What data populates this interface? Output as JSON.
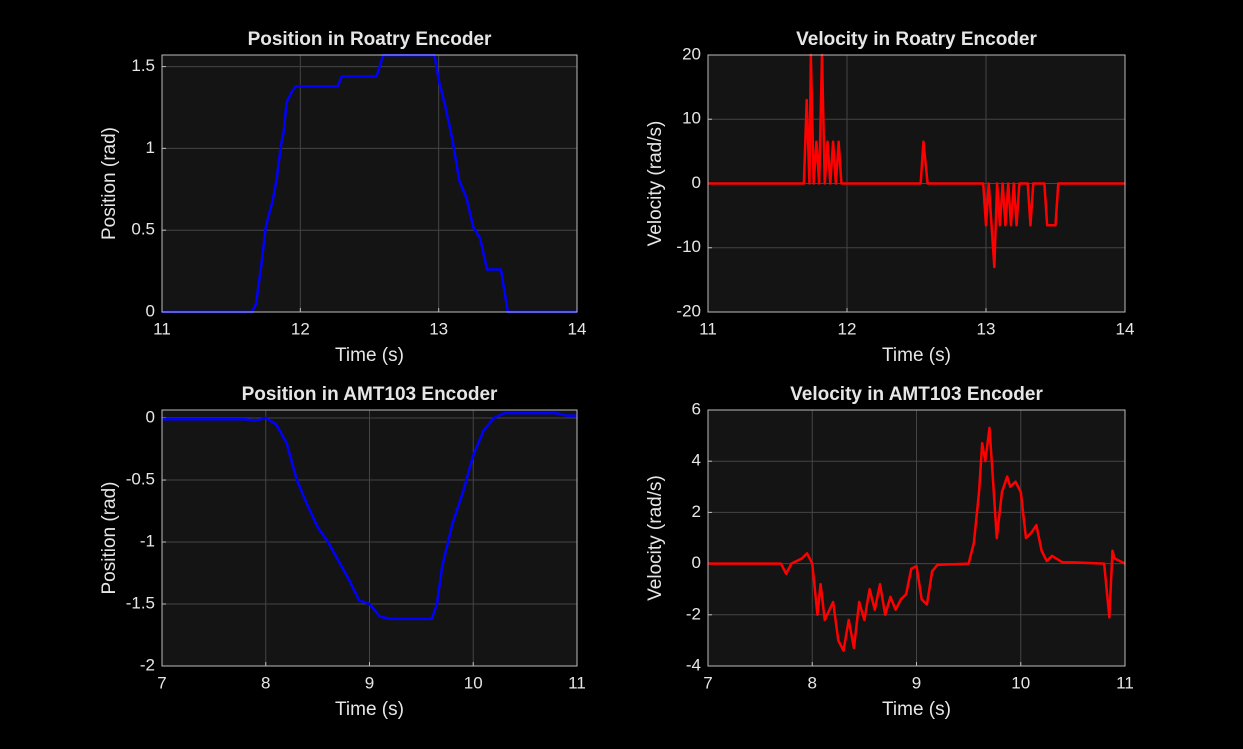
{
  "chart_data": [
    {
      "type": "line",
      "title": "Position in Roatry Encoder",
      "xlabel": "Time (s)",
      "ylabel": "Position (rad)",
      "x": [
        11,
        11.65,
        11.68,
        11.72,
        11.75,
        11.8,
        11.83,
        11.86,
        11.88,
        11.9,
        11.94,
        11.97,
        12.27,
        12.3,
        12.55,
        12.6,
        12.97,
        13.0,
        13.05,
        13.1,
        13.15,
        13.2,
        13.25,
        13.3,
        13.35,
        13.45,
        13.5,
        14
      ],
      "series": [
        {
          "color": "#0000ff",
          "values": [
            0,
            0,
            0.05,
            0.3,
            0.52,
            0.68,
            0.82,
            1.02,
            1.1,
            1.28,
            1.35,
            1.38,
            1.38,
            1.44,
            1.44,
            1.57,
            1.57,
            1.42,
            1.25,
            1.05,
            0.8,
            0.7,
            0.52,
            0.45,
            0.26,
            0.26,
            0,
            0
          ]
        }
      ],
      "xlim": [
        11,
        14
      ],
      "xticks": [
        11,
        12,
        13,
        14
      ],
      "ylim": [
        0,
        1.5708
      ],
      "yticks": [
        0,
        0.5,
        1,
        1.5
      ],
      "grid": true
    },
    {
      "type": "line",
      "title": "Velocity in Roatry Encoder",
      "xlabel": "Time (s)",
      "ylabel": "Velocity (rad/s)",
      "x": [
        11,
        11.69,
        11.71,
        11.73,
        11.74,
        11.76,
        11.78,
        11.8,
        11.82,
        11.84,
        11.86,
        11.88,
        11.9,
        11.92,
        11.94,
        11.96,
        11.98,
        12.53,
        12.55,
        12.58,
        12.98,
        13.0,
        13.02,
        13.04,
        13.06,
        13.08,
        13.1,
        13.12,
        13.14,
        13.16,
        13.18,
        13.2,
        13.22,
        13.24,
        13.26,
        13.3,
        13.32,
        13.34,
        13.36,
        13.42,
        13.44,
        13.5,
        13.52,
        14
      ],
      "series": [
        {
          "color": "#ff0000",
          "values": [
            0,
            0,
            13,
            0,
            20,
            0,
            6.5,
            0,
            20,
            0,
            6.5,
            0,
            6.5,
            0,
            6.5,
            0,
            0,
            0,
            6.5,
            0,
            0,
            -6.5,
            0,
            -6.5,
            -13,
            0,
            -6.5,
            0,
            -6.5,
            0,
            -6.5,
            0,
            -6.5,
            0,
            0,
            0,
            -6.5,
            0,
            0,
            0,
            -6.5,
            -6.5,
            0,
            0
          ]
        }
      ],
      "xlim": [
        11,
        14
      ],
      "xticks": [
        11,
        12,
        13,
        14
      ],
      "ylim": [
        -20,
        20
      ],
      "yticks": [
        -20,
        -10,
        0,
        10,
        20
      ],
      "grid": true
    },
    {
      "type": "line",
      "title": "Position in AMT103 Encoder",
      "xlabel": "Time (s)",
      "ylabel": "Position (rad)",
      "x": [
        7,
        7.8,
        7.9,
        8.0,
        8.1,
        8.2,
        8.3,
        8.4,
        8.5,
        8.6,
        8.7,
        8.8,
        8.9,
        9.0,
        9.1,
        9.2,
        9.6,
        9.65,
        9.7,
        9.8,
        9.9,
        10.0,
        10.1,
        10.2,
        10.3,
        10.8,
        10.9,
        11
      ],
      "series": [
        {
          "color": "#0000ff",
          "values": [
            -0.01,
            -0.01,
            -0.02,
            0,
            -0.05,
            -0.2,
            -0.5,
            -0.7,
            -0.88,
            -1.0,
            -1.15,
            -1.3,
            -1.47,
            -1.5,
            -1.6,
            -1.62,
            -1.62,
            -1.5,
            -1.2,
            -0.85,
            -0.6,
            -0.3,
            -0.1,
            0,
            0.04,
            0.04,
            0.02,
            0.02
          ]
        }
      ],
      "xlim": [
        7,
        11
      ],
      "xticks": [
        7,
        8,
        9,
        10,
        11
      ],
      "ylim": [
        -2,
        0.065
      ],
      "yticks": [
        -2,
        -1.5,
        -1,
        -0.5,
        0
      ],
      "grid": true
    },
    {
      "type": "line",
      "title": "Velocity in AMT103 Encoder",
      "xlabel": "Time (s)",
      "ylabel": "Velocity (rad/s)",
      "x": [
        7,
        7.7,
        7.75,
        7.8,
        7.9,
        7.95,
        8.0,
        8.05,
        8.08,
        8.12,
        8.2,
        8.25,
        8.3,
        8.35,
        8.4,
        8.45,
        8.5,
        8.55,
        8.6,
        8.65,
        8.7,
        8.75,
        8.8,
        8.85,
        8.9,
        8.95,
        9.0,
        9.05,
        9.1,
        9.15,
        9.2,
        9.5,
        9.55,
        9.6,
        9.63,
        9.66,
        9.7,
        9.73,
        9.77,
        9.82,
        9.87,
        9.9,
        9.95,
        10.0,
        10.05,
        10.1,
        10.15,
        10.2,
        10.25,
        10.3,
        10.4,
        10.5,
        10.8,
        10.85,
        10.88,
        10.9,
        11
      ],
      "series": [
        {
          "color": "#ff0000",
          "values": [
            0,
            0,
            -0.4,
            0,
            0.2,
            0.4,
            0,
            -2.0,
            -0.8,
            -2.2,
            -1.5,
            -3.0,
            -3.4,
            -2.2,
            -3.3,
            -1.5,
            -2.2,
            -1.0,
            -1.8,
            -0.8,
            -2.0,
            -1.3,
            -1.8,
            -1.4,
            -1.2,
            -0.2,
            -0.1,
            -1.4,
            -1.6,
            -0.3,
            -0.05,
            0,
            0.8,
            2.8,
            4.7,
            4.0,
            5.3,
            3.5,
            1.0,
            2.8,
            3.4,
            3.0,
            3.2,
            2.8,
            1.0,
            1.2,
            1.5,
            0.5,
            0.1,
            0.3,
            0.05,
            0.05,
            0,
            -2.1,
            0.5,
            0.2,
            0
          ]
        }
      ],
      "xlim": [
        7,
        11
      ],
      "xticks": [
        7,
        8,
        9,
        10,
        11
      ],
      "ylim": [
        -4,
        6
      ],
      "yticks": [
        -4,
        -2,
        0,
        2,
        4,
        6
      ],
      "grid": true
    }
  ]
}
